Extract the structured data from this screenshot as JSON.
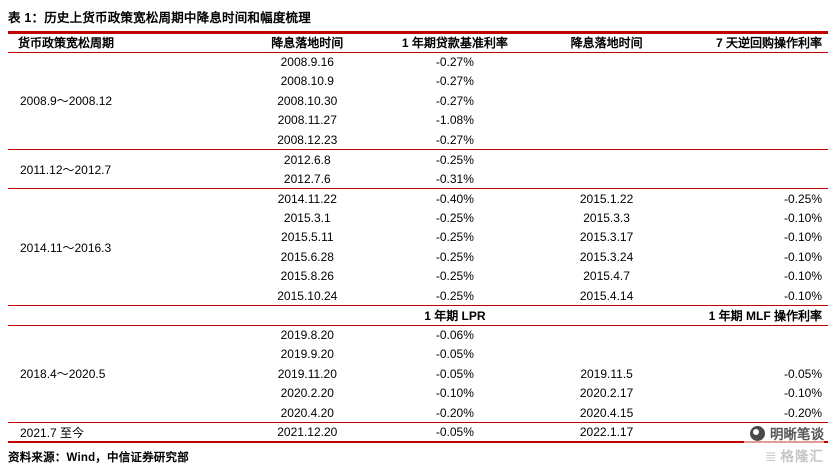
{
  "title": "表 1：历史上货币政策宽松周期中降息时间和幅度梳理",
  "source": {
    "label": "资料来源：",
    "text": "Wind，中信证券研究部"
  },
  "watermark": {
    "brand": "明晰笔谈",
    "platform": "格隆汇"
  },
  "colors": {
    "accent": "#c00000"
  },
  "table": {
    "headers": [
      "货币政策宽松周期",
      "降息落地时间",
      "1 年期贷款基准利率",
      "降息落地时间",
      "7 天逆回购操作利率"
    ],
    "subheaders": {
      "col3": "1 年期 LPR",
      "col5": "1 年期 MLF 操作利率"
    },
    "sections": [
      {
        "kind": "group",
        "period": "2008.9～2008.12",
        "rows": [
          [
            "2008.9.16",
            "-0.27%",
            "",
            ""
          ],
          [
            "2008.10.9",
            "-0.27%",
            "",
            ""
          ],
          [
            "2008.10.30",
            "-0.27%",
            "",
            ""
          ],
          [
            "2008.11.27",
            "-1.08%",
            "",
            ""
          ],
          [
            "2008.12.23",
            "-0.27%",
            "",
            ""
          ]
        ]
      },
      {
        "kind": "group",
        "period": "2011.12～2012.7",
        "rows": [
          [
            "2012.6.8",
            "-0.25%",
            "",
            ""
          ],
          [
            "2012.7.6",
            "-0.31%",
            "",
            ""
          ]
        ]
      },
      {
        "kind": "group",
        "period": "2014.11～2016.3",
        "rows": [
          [
            "2014.11.22",
            "-0.40%",
            "2015.1.22",
            "-0.25%"
          ],
          [
            "2015.3.1",
            "-0.25%",
            "2015.3.3",
            "-0.10%"
          ],
          [
            "2015.5.11",
            "-0.25%",
            "2015.3.17",
            "-0.10%"
          ],
          [
            "2015.6.28",
            "-0.25%",
            "2015.3.24",
            "-0.10%"
          ],
          [
            "2015.8.26",
            "-0.25%",
            "2015.4.7",
            "-0.10%"
          ],
          [
            "2015.10.24",
            "-0.25%",
            "2015.4.14",
            "-0.10%"
          ]
        ]
      },
      {
        "kind": "subheader",
        "cells": [
          "",
          "",
          "1 年期 LPR",
          "",
          "1 年期 MLF 操作利率"
        ]
      },
      {
        "kind": "group",
        "period": "2018.4～2020.5",
        "rows": [
          [
            "2019.8.20",
            "-0.06%",
            "",
            ""
          ],
          [
            "2019.9.20",
            "-0.05%",
            "",
            ""
          ],
          [
            "2019.11.20",
            "-0.05%",
            "2019.11.5",
            "-0.05%"
          ],
          [
            "2020.2.20",
            "-0.10%",
            "2020.2.17",
            "-0.10%"
          ],
          [
            "2020.4.20",
            "-0.20%",
            "2020.4.15",
            "-0.20%"
          ]
        ]
      },
      {
        "kind": "group",
        "period": "2021.7 至今",
        "rows": [
          [
            "2021.12.20",
            "-0.05%",
            "2022.1.17",
            ""
          ]
        ]
      }
    ]
  }
}
